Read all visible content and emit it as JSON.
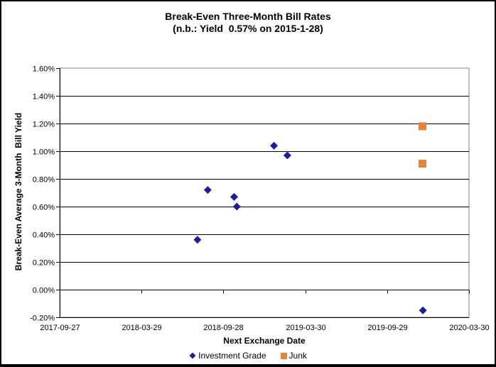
{
  "window": {
    "background": "#ffffff",
    "frame_border_color": "#000000"
  },
  "chart_data": {
    "type": "scatter",
    "title": "Break-Even Three-Month Bill Rates",
    "subtitle": "(n.b.: Yield  0.57% on 2015-1-28)",
    "xlabel": "Next Exchange Date",
    "ylabel": "Break-Even Average 3-Month  Bill Yield",
    "grid": "horizontal",
    "legend_position": "bottom",
    "colors": {
      "gridline": "#000000",
      "axis": "#000000",
      "plot_border": "#808080",
      "investment_grade": "#1e1e96",
      "junk": "#e88238"
    },
    "x_axis": {
      "type": "date",
      "min": "2017-09-27",
      "max": "2020-03-30",
      "ticks": [
        "2017-09-27",
        "2018-03-29",
        "2018-09-28",
        "2019-03-30",
        "2019-09-29",
        "2020-03-30"
      ]
    },
    "y_axis": {
      "min": -0.2,
      "max": 1.6,
      "step": 0.2,
      "unit": "percent",
      "tick_labels": [
        "1.60%",
        "1.40%",
        "1.20%",
        "1.00%",
        "0.80%",
        "0.60%",
        "0.40%",
        "0.20%",
        "0.00%",
        "-0.20%"
      ]
    },
    "series": [
      {
        "name": "Investment Grade",
        "marker": "diamond",
        "color": "#1e1e96",
        "points": [
          {
            "x": "2018-08-01",
            "y": 0.36
          },
          {
            "x": "2018-08-24",
            "y": 0.72
          },
          {
            "x": "2018-10-22",
            "y": 0.67
          },
          {
            "x": "2018-10-28",
            "y": 0.6
          },
          {
            "x": "2019-01-19",
            "y": 1.04
          },
          {
            "x": "2019-02-18",
            "y": 0.97
          },
          {
            "x": "2019-12-18",
            "y": -0.15
          }
        ]
      },
      {
        "name": "Junk",
        "marker": "square",
        "color": "#e88238",
        "points": [
          {
            "x": "2019-12-17",
            "y": 1.18
          },
          {
            "x": "2019-12-17",
            "y": 0.91
          }
        ]
      }
    ]
  }
}
